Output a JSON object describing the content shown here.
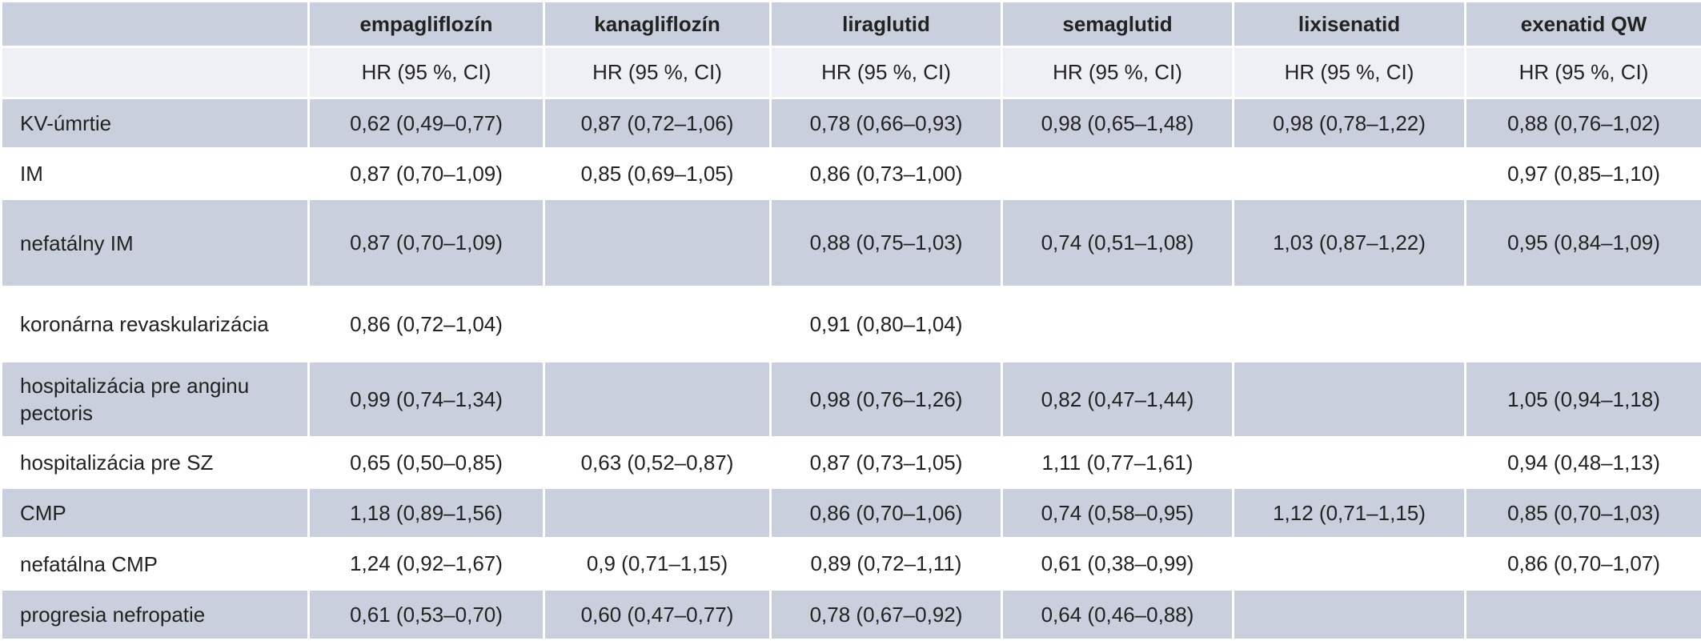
{
  "table": {
    "columns": [
      "empagliflozín",
      "kanagliflozín",
      "liraglutid",
      "semaglutid",
      "lixisenatid",
      "exenatid QW"
    ],
    "subheader": [
      "HR (95 %, CI)",
      "HR (95 %, CI)",
      "HR (95 %, CI)",
      "HR (95 %, CI)",
      "HR (95 %, CI)",
      "HR (95 %, CI)"
    ],
    "rows": [
      {
        "label": "KV-úmrtie",
        "values": [
          "0,62 (0,49–0,77)",
          "0,87 (0,72–1,06)",
          "0,78 (0,66–0,93)",
          "0,98 (0,65–1,48)",
          "0,98 (0,78–1,22)",
          "0,88 (0,76–1,02)"
        ]
      },
      {
        "label": "IM",
        "values": [
          "0,87 (0,70–1,09)",
          "0,85 (0,69–1,05)",
          "0,86 (0,73–1,00)",
          null,
          null,
          "0,97 (0,85–1,10)"
        ]
      },
      {
        "label": "nefatálny IM",
        "values": [
          "0,87 (0,70–1,09)",
          null,
          "0,88 (0,75–1,03)",
          "0,74 (0,51–1,08)",
          "1,03 (0,87–1,22)",
          "0,95 (0,84–1,09)"
        ]
      },
      {
        "label": "koronárna revaskularizácia",
        "values": [
          "0,86 (0,72–1,04)",
          null,
          "0,91 (0,80–1,04)",
          null,
          null,
          null
        ]
      },
      {
        "label": "hospitalizácia pre anginu pectoris",
        "values": [
          "0,99 (0,74–1,34)",
          null,
          "0,98 (0,76–1,26)",
          "0,82 (0,47–1,44)",
          null,
          "1,05 (0,94–1,18)"
        ]
      },
      {
        "label": "hospitalizácia pre SZ",
        "values": [
          "0,65 (0,50–0,85)",
          "0,63 (0,52–0,87)",
          "0,87 (0,73–1,05)",
          "1,11 (0,77–1,61)",
          null,
          "0,94 (0,48–1,13)"
        ]
      },
      {
        "label": "CMP",
        "values": [
          "1,18 (0,89–1,56)",
          null,
          "0,86 (0,70–1,06)",
          "0,74 (0,58–0,95)",
          "1,12 (0,71–1,15)",
          "0,85 (0,70–1,03)"
        ]
      },
      {
        "label": "nefatálna CMP",
        "values": [
          "1,24 (0,92–1,67)",
          "0,9 (0,71–1,15)",
          "0,89 (0,72–1,11)",
          "0,61 (0,38–0,99)",
          null,
          "0,86 (0,70–1,07)"
        ]
      },
      {
        "label": "progresia nefropatie",
        "values": [
          "0,61 (0,53–0,70)",
          "0,60 (0,47–0,77)",
          "0,78 (0,67–0,92)",
          "0,64 (0,46–0,88)",
          null,
          null
        ]
      }
    ]
  }
}
